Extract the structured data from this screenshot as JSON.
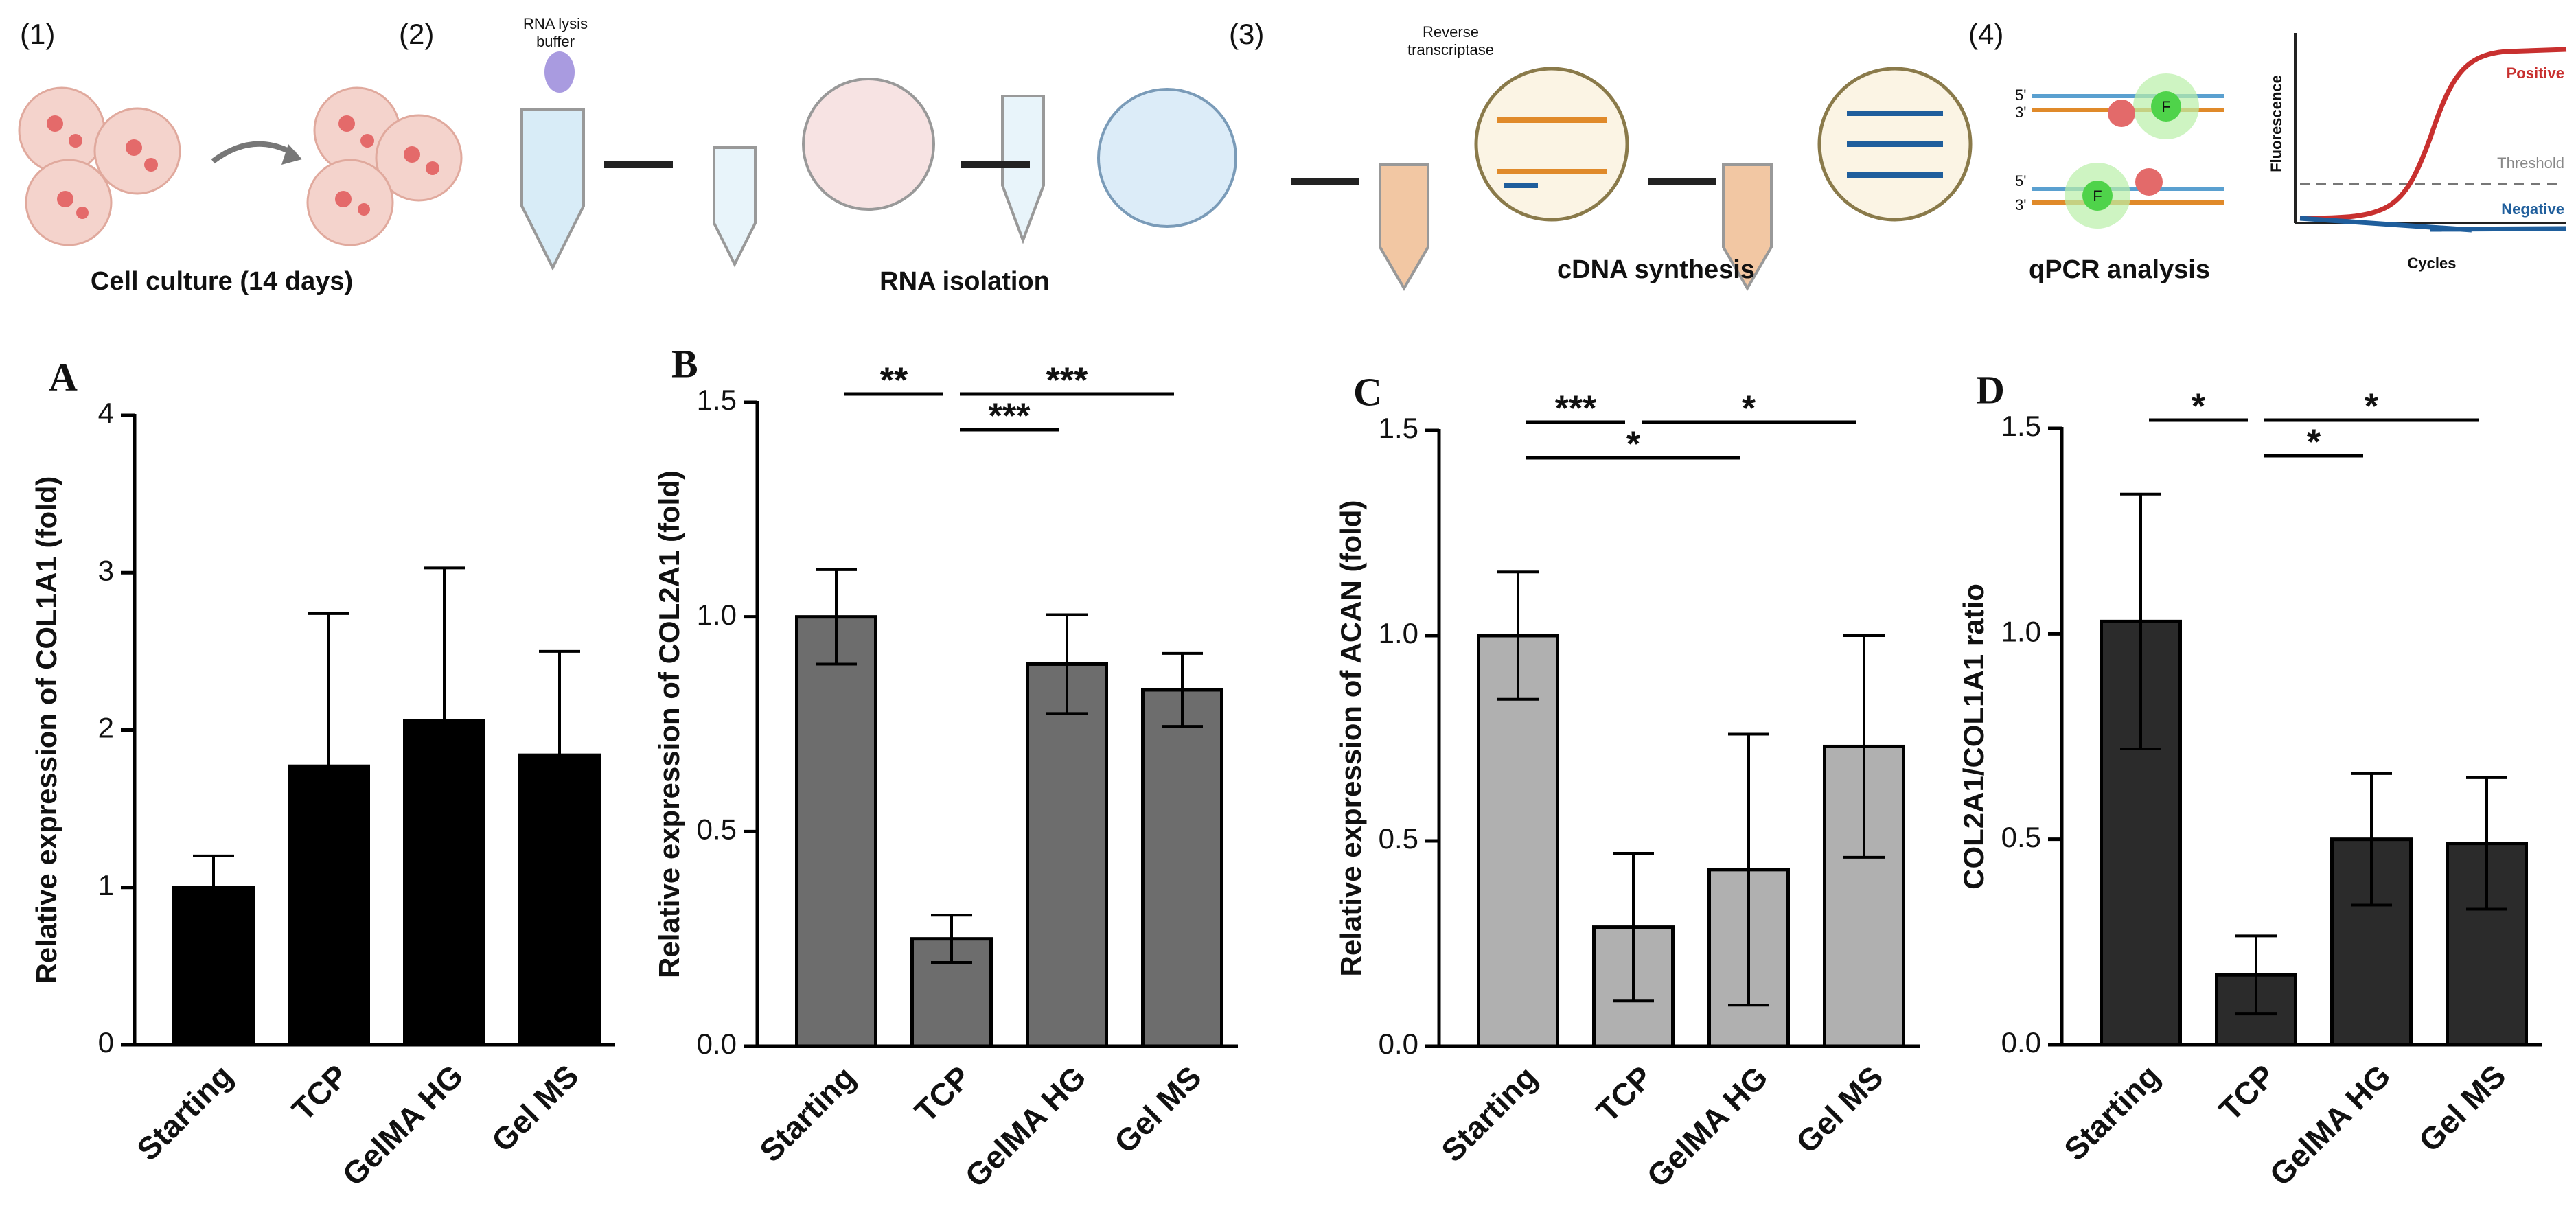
{
  "schematic": {
    "steps": [
      "(1)",
      "(2)",
      "(3)",
      "(4)"
    ],
    "captions": [
      "Cell culture (14 days)",
      "RNA isolation",
      "cDNA synthesis",
      "qPCR analysis"
    ],
    "lysis_buffer": [
      "RNA lysis",
      "buffer"
    ],
    "enzyme": [
      "Reverse",
      "transcriptase"
    ],
    "strand_ends": [
      "5'",
      "3'",
      "5'",
      "3'"
    ],
    "fluorophore": "F",
    "plot": {
      "y_label": "Fluorescence",
      "x_label": "Cycles",
      "positive": "Positive",
      "threshold": "Threshold",
      "negative": "Negative"
    }
  },
  "chart_data": [
    {
      "type": "bar",
      "panel": "A",
      "y_label": "Relative expression of COL1A1 (fold)",
      "categories": [
        "Starting",
        "TCP",
        "GelMA HG",
        "Gel MS"
      ],
      "values": [
        1.0,
        1.77,
        2.06,
        1.84
      ],
      "errors": [
        0.2,
        0.97,
        0.97,
        0.66
      ],
      "color": "#000000",
      "ylim": [
        0,
        4
      ],
      "yticks": [
        0,
        1,
        2,
        3,
        4
      ],
      "significance": []
    },
    {
      "type": "bar",
      "panel": "B",
      "y_label": "Relative expression of COL2A1 (fold)",
      "categories": [
        "Starting",
        "TCP",
        "GelMA HG",
        "Gel MS"
      ],
      "values": [
        1.0,
        0.25,
        0.89,
        0.83
      ],
      "errors": [
        0.11,
        0.055,
        0.115,
        0.085
      ],
      "color": "#6d6d6d",
      "ylim": [
        0,
        1.5
      ],
      "yticks": [
        {
          "value": 0,
          "label": "0.0"
        },
        0.5,
        {
          "value": 1,
          "label": "1.0"
        },
        1.5
      ],
      "significance": [
        {
          "pair": [
            0,
            1
          ],
          "label": "**"
        },
        {
          "pair": [
            1,
            2
          ],
          "label": "***"
        },
        {
          "pair": [
            1,
            3
          ],
          "label": "***"
        }
      ]
    },
    {
      "type": "bar",
      "panel": "C",
      "y_label": "Relative expression of ACAN (fold)",
      "categories": [
        "Starting",
        "TCP",
        "GelMA HG",
        "Gel MS"
      ],
      "values": [
        1.0,
        0.29,
        0.43,
        0.73
      ],
      "errors": [
        0.155,
        0.18,
        0.33,
        0.27
      ],
      "color": "#b0b0b0",
      "ylim": [
        0,
        1.5
      ],
      "yticks": [
        {
          "value": 0,
          "label": "0.0"
        },
        0.5,
        {
          "value": 1,
          "label": "1.0"
        },
        1.5
      ],
      "significance": [
        {
          "pair": [
            0,
            1
          ],
          "label": "***"
        },
        {
          "pair": [
            0,
            2
          ],
          "label": "*"
        },
        {
          "pair": [
            1,
            3
          ],
          "label": "*"
        }
      ]
    },
    {
      "type": "bar",
      "panel": "D",
      "y_label": "COL2A1/COL1A1 ratio",
      "categories": [
        "Starting",
        "TCP",
        "GelMA HG",
        "Gel MS"
      ],
      "values": [
        1.03,
        0.17,
        0.5,
        0.49
      ],
      "errors": [
        0.31,
        0.095,
        0.16,
        0.16
      ],
      "color": "#2b2b2b",
      "ylim": [
        0,
        1.5
      ],
      "yticks": [
        {
          "value": 0,
          "label": "0.0"
        },
        0.5,
        {
          "value": 1,
          "label": "1.0"
        },
        1.5
      ],
      "significance": [
        {
          "pair": [
            0,
            1
          ],
          "label": "*"
        },
        {
          "pair": [
            1,
            2
          ],
          "label": "*"
        },
        {
          "pair": [
            1,
            3
          ],
          "label": "*"
        }
      ]
    }
  ]
}
